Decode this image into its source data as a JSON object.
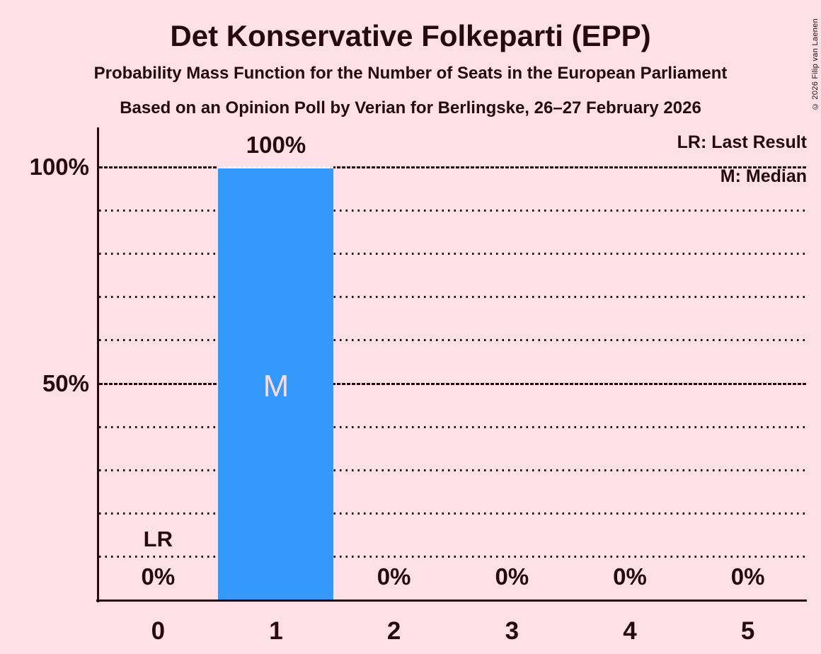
{
  "page": {
    "title": "Det Konservative Folkeparti (EPP)",
    "subtitle1": "Probability Mass Function for the Number of Seats in the European Parliament",
    "subtitle2": "Based on an Opinion Poll by Verian for Berlingske, 26–27 February 2026",
    "copyright": "© 2026 Filip van Laenen"
  },
  "legend": {
    "lr": "LR: Last Result",
    "m": "M: Median"
  },
  "annotations": {
    "last_result": "LR",
    "median": "M"
  },
  "chart_data": {
    "type": "bar",
    "title": "Det Konservative Folkeparti (EPP)",
    "categories": [
      "0",
      "1",
      "2",
      "3",
      "4",
      "5"
    ],
    "values": [
      0,
      100,
      0,
      0,
      0,
      0
    ],
    "value_labels": [
      "0%",
      "100%",
      "0%",
      "0%",
      "0%",
      "0%"
    ],
    "xlabel": "",
    "ylabel": "",
    "ylim": [
      0,
      100
    ],
    "y_tick_values": [
      100,
      50
    ],
    "y_tick_labels": [
      "100%",
      "50%"
    ],
    "gridlines_percent": [
      10,
      20,
      30,
      40,
      50,
      60,
      70,
      80,
      90,
      100
    ],
    "major_gridlines_percent": [
      50,
      100
    ],
    "grid": "dotted horizontal",
    "legend_position": "top-right",
    "median_category_index": 1,
    "last_result_category_index": 0,
    "bar_color": "#3399FB",
    "background_color": "#FCE1E6",
    "text_color": "#270A10",
    "median_letter_color": "#FCD9E0"
  }
}
